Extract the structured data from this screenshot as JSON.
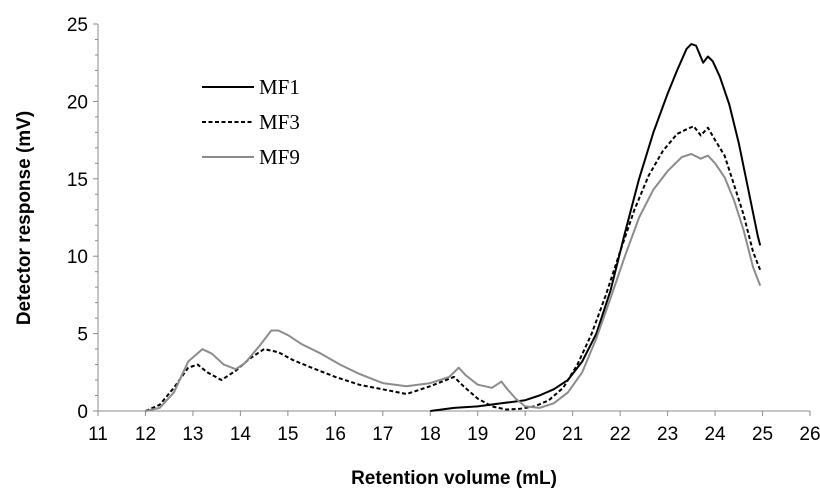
{
  "chart_data": {
    "type": "line",
    "title": "",
    "xlabel": "Retention  volume (mL)",
    "ylabel": "Detector response (mV)",
    "xlim": [
      11,
      26
    ],
    "ylim": [
      0,
      25
    ],
    "xticks": [
      11,
      12,
      13,
      14,
      15,
      16,
      17,
      18,
      19,
      20,
      21,
      22,
      23,
      24,
      25,
      26
    ],
    "yticks": [
      0,
      5,
      10,
      15,
      20,
      25
    ],
    "grid": false,
    "legend_position": "top-left",
    "series": [
      {
        "name": "MF1",
        "color": "#000000",
        "dash": "solid",
        "points": [
          [
            18.0,
            0.0
          ],
          [
            18.5,
            0.2
          ],
          [
            19.0,
            0.3
          ],
          [
            19.5,
            0.5
          ],
          [
            20.0,
            0.7
          ],
          [
            20.3,
            1.0
          ],
          [
            20.6,
            1.4
          ],
          [
            20.9,
            2.0
          ],
          [
            21.2,
            3.2
          ],
          [
            21.5,
            5.0
          ],
          [
            21.8,
            7.8
          ],
          [
            22.1,
            11.5
          ],
          [
            22.4,
            15.0
          ],
          [
            22.7,
            18.0
          ],
          [
            23.0,
            20.5
          ],
          [
            23.2,
            22.0
          ],
          [
            23.4,
            23.4
          ],
          [
            23.5,
            23.7
          ],
          [
            23.6,
            23.6
          ],
          [
            23.75,
            22.5
          ],
          [
            23.85,
            22.9
          ],
          [
            23.95,
            22.6
          ],
          [
            24.1,
            21.6
          ],
          [
            24.3,
            19.8
          ],
          [
            24.5,
            17.3
          ],
          [
            24.7,
            14.3
          ],
          [
            24.9,
            11.3
          ],
          [
            24.95,
            10.7
          ]
        ]
      },
      {
        "name": "MF3",
        "color": "#000000",
        "dash": "dashed",
        "points": [
          [
            12.0,
            0.0
          ],
          [
            12.3,
            0.4
          ],
          [
            12.6,
            1.5
          ],
          [
            12.9,
            2.8
          ],
          [
            13.1,
            3.0
          ],
          [
            13.3,
            2.5
          ],
          [
            13.6,
            2.0
          ],
          [
            13.9,
            2.6
          ],
          [
            14.2,
            3.4
          ],
          [
            14.5,
            4.0
          ],
          [
            14.8,
            3.8
          ],
          [
            15.1,
            3.3
          ],
          [
            15.5,
            2.8
          ],
          [
            16.0,
            2.2
          ],
          [
            16.5,
            1.7
          ],
          [
            17.0,
            1.4
          ],
          [
            17.5,
            1.1
          ],
          [
            18.0,
            1.6
          ],
          [
            18.5,
            2.2
          ],
          [
            18.7,
            1.6
          ],
          [
            19.0,
            0.8
          ],
          [
            19.3,
            0.3
          ],
          [
            19.6,
            0.1
          ],
          [
            19.9,
            0.15
          ],
          [
            20.2,
            0.3
          ],
          [
            20.5,
            0.7
          ],
          [
            20.8,
            1.5
          ],
          [
            21.1,
            3.0
          ],
          [
            21.4,
            5.0
          ],
          [
            21.7,
            7.5
          ],
          [
            22.0,
            10.3
          ],
          [
            22.3,
            13.0
          ],
          [
            22.6,
            15.2
          ],
          [
            22.9,
            16.8
          ],
          [
            23.2,
            17.9
          ],
          [
            23.4,
            18.2
          ],
          [
            23.55,
            18.4
          ],
          [
            23.7,
            17.8
          ],
          [
            23.85,
            18.3
          ],
          [
            24.0,
            17.5
          ],
          [
            24.2,
            16.5
          ],
          [
            24.4,
            14.6
          ],
          [
            24.6,
            12.7
          ],
          [
            24.8,
            10.3
          ],
          [
            24.95,
            9.1
          ]
        ]
      },
      {
        "name": "MF9",
        "color": "#8c8c8c",
        "dash": "solid",
        "points": [
          [
            12.0,
            0.0
          ],
          [
            12.3,
            0.2
          ],
          [
            12.6,
            1.2
          ],
          [
            12.9,
            3.2
          ],
          [
            13.2,
            4.0
          ],
          [
            13.4,
            3.7
          ],
          [
            13.65,
            3.0
          ],
          [
            13.9,
            2.7
          ],
          [
            14.1,
            3.1
          ],
          [
            14.4,
            4.2
          ],
          [
            14.65,
            5.2
          ],
          [
            14.8,
            5.2
          ],
          [
            15.0,
            4.9
          ],
          [
            15.3,
            4.3
          ],
          [
            15.7,
            3.7
          ],
          [
            16.1,
            3.0
          ],
          [
            16.5,
            2.4
          ],
          [
            17.0,
            1.8
          ],
          [
            17.5,
            1.6
          ],
          [
            18.0,
            1.8
          ],
          [
            18.4,
            2.2
          ],
          [
            18.6,
            2.8
          ],
          [
            18.75,
            2.3
          ],
          [
            19.0,
            1.7
          ],
          [
            19.3,
            1.5
          ],
          [
            19.5,
            1.9
          ],
          [
            19.6,
            1.5
          ],
          [
            19.8,
            0.8
          ],
          [
            20.0,
            0.3
          ],
          [
            20.3,
            0.2
          ],
          [
            20.6,
            0.5
          ],
          [
            20.9,
            1.2
          ],
          [
            21.2,
            2.5
          ],
          [
            21.5,
            4.7
          ],
          [
            21.8,
            7.3
          ],
          [
            22.1,
            10.0
          ],
          [
            22.4,
            12.5
          ],
          [
            22.7,
            14.3
          ],
          [
            23.0,
            15.5
          ],
          [
            23.3,
            16.4
          ],
          [
            23.5,
            16.6
          ],
          [
            23.7,
            16.3
          ],
          [
            23.85,
            16.5
          ],
          [
            24.0,
            16.0
          ],
          [
            24.2,
            15.1
          ],
          [
            24.4,
            13.6
          ],
          [
            24.6,
            11.7
          ],
          [
            24.8,
            9.3
          ],
          [
            24.95,
            8.1
          ]
        ]
      }
    ]
  }
}
